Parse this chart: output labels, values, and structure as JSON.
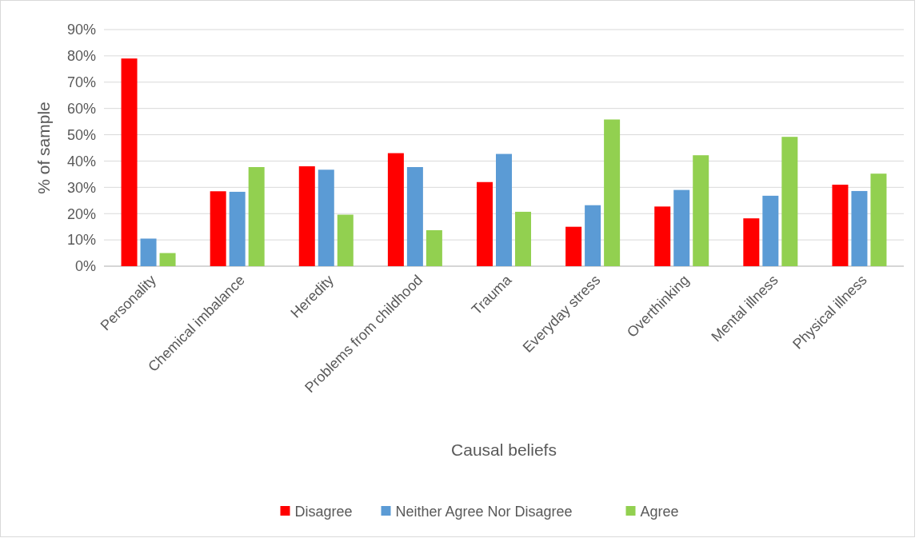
{
  "chart_data": {
    "type": "bar",
    "xlabel": "Causal beliefs",
    "ylabel": "% of sample",
    "categories": [
      "Personality",
      "Chemical imbalance",
      "Heredity",
      "Problems from childhood",
      "Trauma",
      "Everyday stress",
      "Overthinking",
      "Mental illness",
      "Physical illness"
    ],
    "series": [
      {
        "name": "Disagree",
        "color": "#ff0000",
        "values": [
          79,
          28.5,
          38,
          43,
          32,
          15,
          22.7,
          18.2,
          31
        ]
      },
      {
        "name": "Neither Agree Nor Disagree",
        "color": "#5b9bd5",
        "values": [
          10.5,
          28.3,
          36.7,
          37.7,
          42.7,
          23.2,
          29,
          26.8,
          28.6
        ]
      },
      {
        "name": "Agree",
        "color": "#92d050",
        "values": [
          5,
          37.7,
          19.6,
          13.7,
          20.7,
          55.8,
          42.2,
          49.2,
          35.2
        ]
      }
    ],
    "ylim": [
      0,
      90
    ],
    "yticks": [
      {
        "value": 0,
        "label": "0%"
      },
      {
        "value": 10,
        "label": "10%"
      },
      {
        "value": 20,
        "label": "20%"
      },
      {
        "value": 30,
        "label": "30%"
      },
      {
        "value": 40,
        "label": "40%"
      },
      {
        "value": 50,
        "label": "50%"
      },
      {
        "value": 60,
        "label": "60%"
      },
      {
        "value": 70,
        "label": "70%"
      },
      {
        "value": 80,
        "label": "80%"
      },
      {
        "value": 90,
        "label": "90%"
      }
    ],
    "grid": "y",
    "legend": "bottom"
  }
}
